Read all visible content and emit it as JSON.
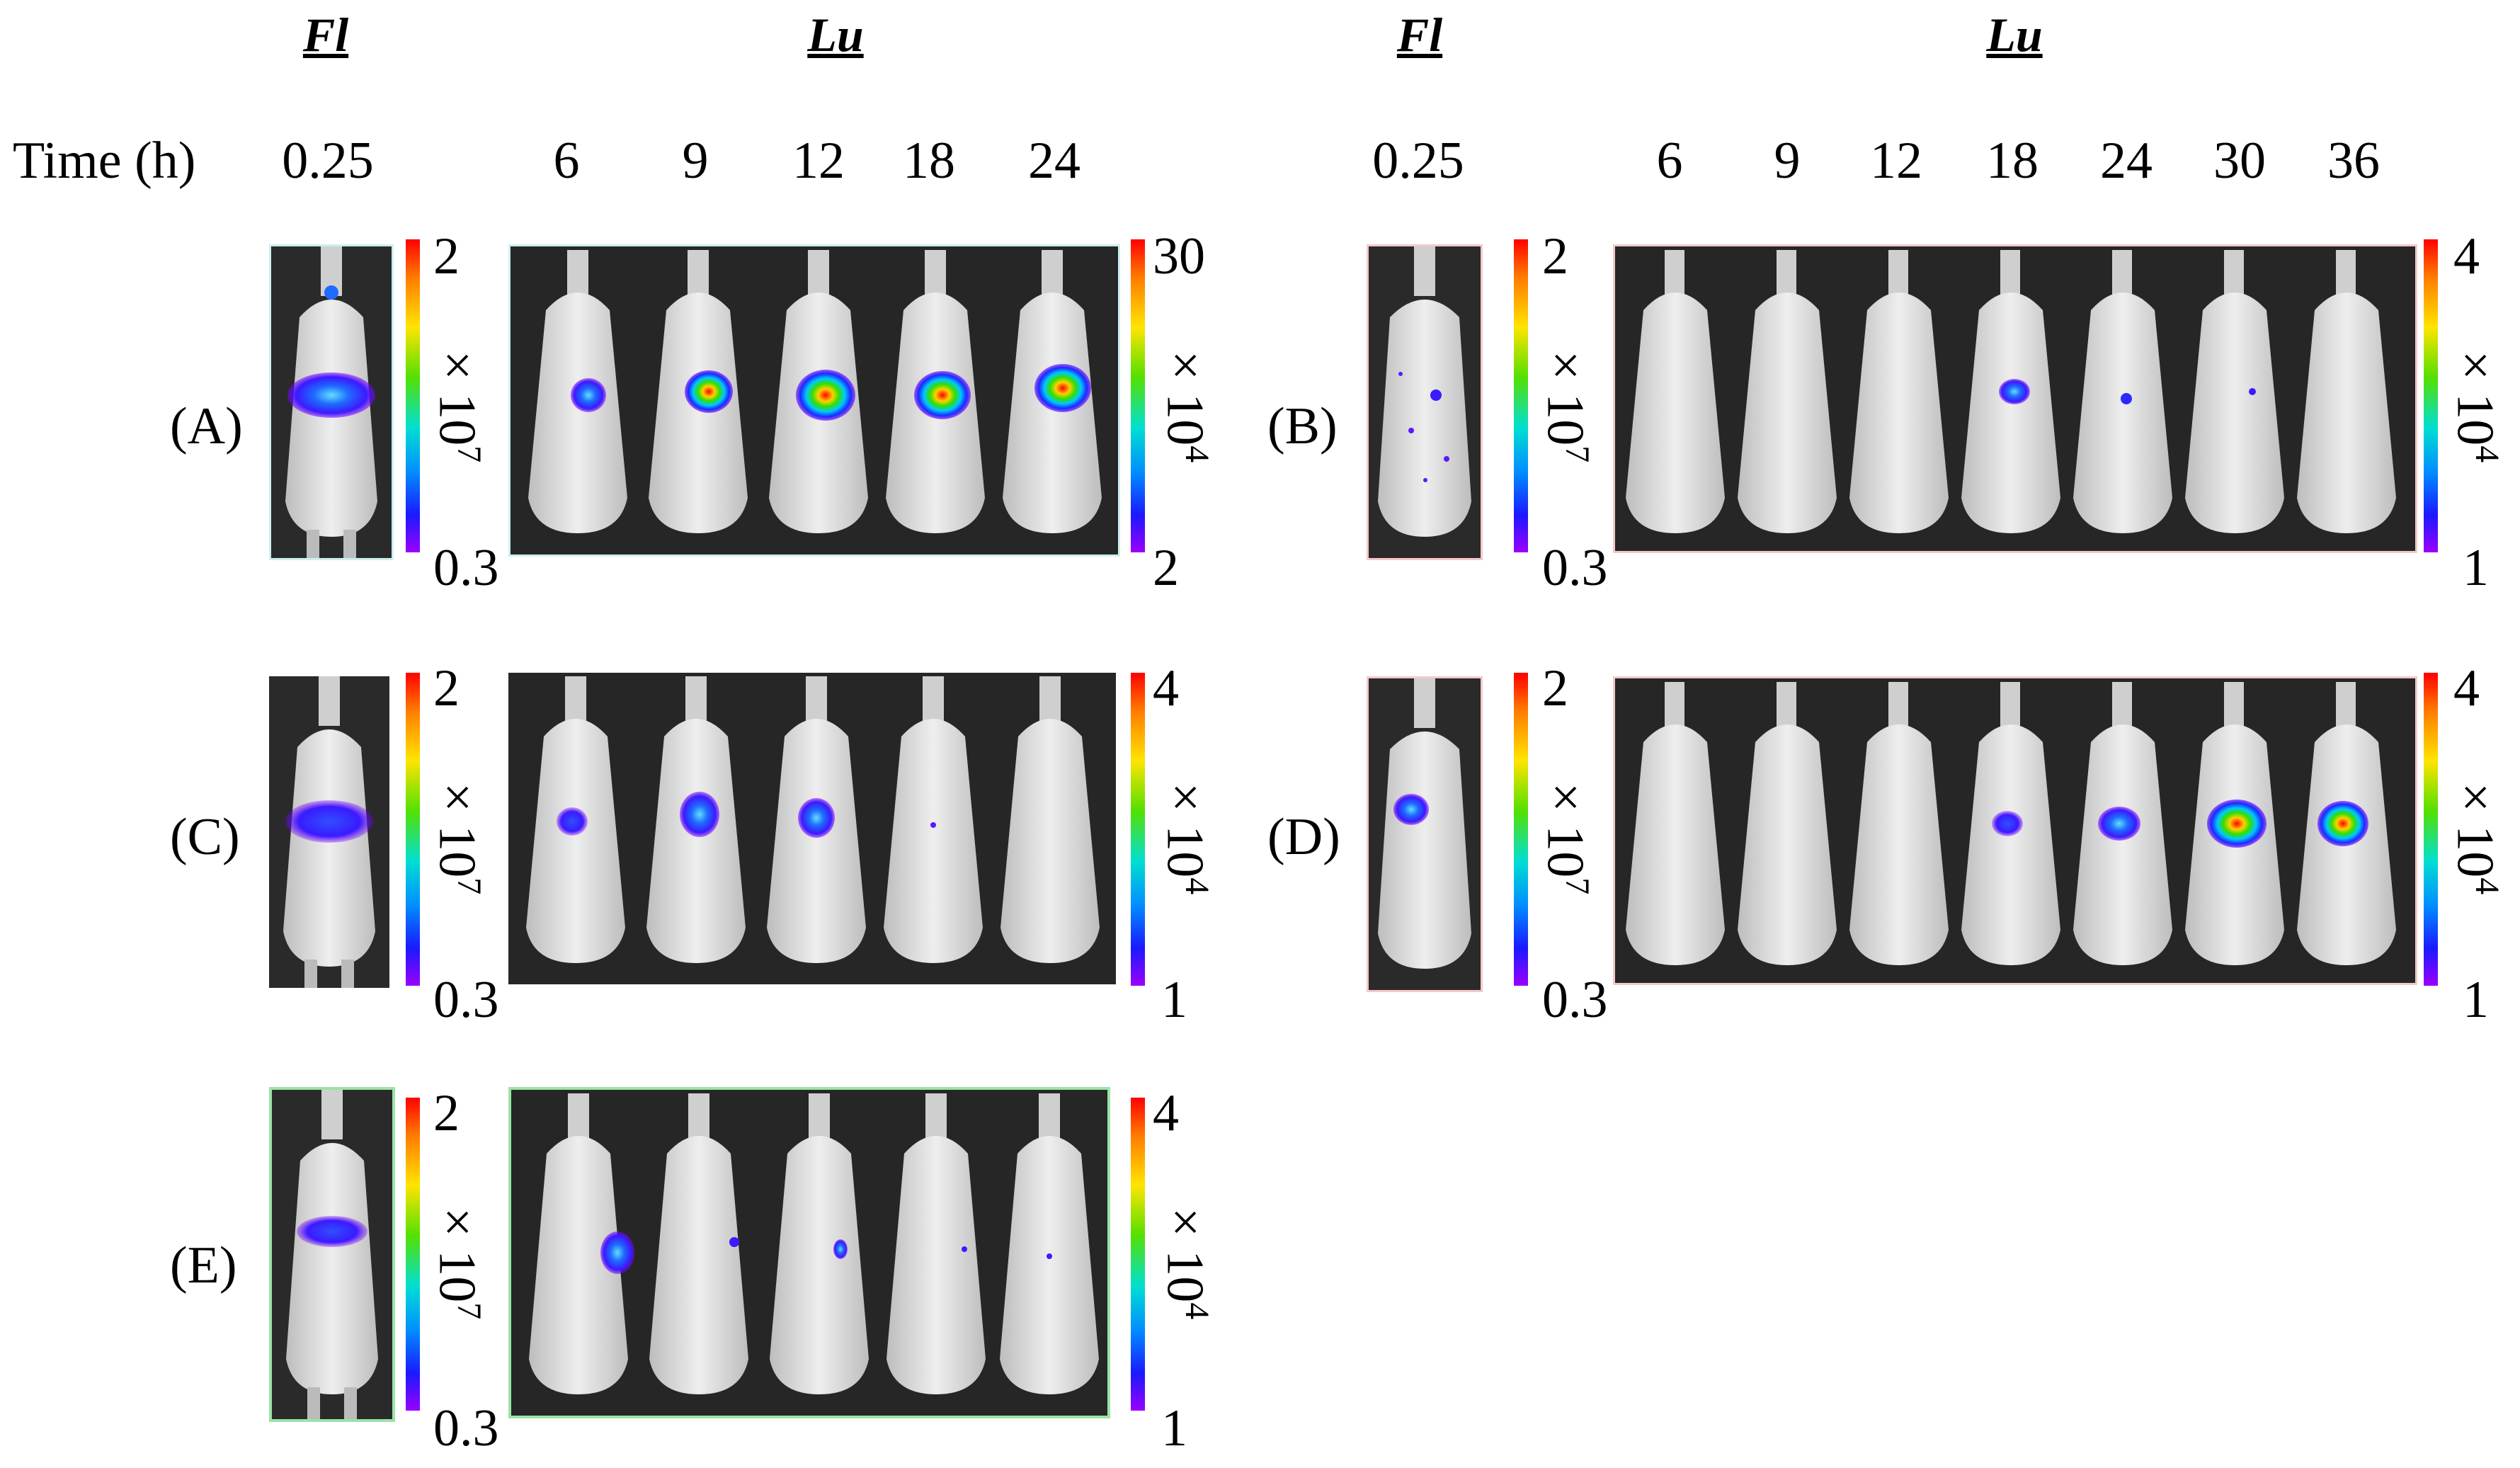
{
  "headers": {
    "fl_left": "Fl",
    "lu_left": "Lu",
    "fl_right": "Fl",
    "lu_right": "Lu"
  },
  "time_label": "Time (h)",
  "left_times": [
    "0.25",
    "6",
    "9",
    "12",
    "18",
    "24"
  ],
  "right_times": [
    "0.25",
    "6",
    "9",
    "12",
    "18",
    "24",
    "30",
    "36"
  ],
  "rows": [
    {
      "label": "(A)",
      "fl_scale": {
        "max": "2",
        "min": "0.3",
        "base": "× 10",
        "exp": "7"
      },
      "lu_scale": {
        "max": "30",
        "min": "2",
        "base": "× 10",
        "exp": "4"
      },
      "border_color": "#cdeeee"
    },
    {
      "label": "(B)",
      "fl_scale": {
        "max": "2",
        "min": "0.3",
        "base": "× 10",
        "exp": "7"
      },
      "lu_scale": {
        "max": "4",
        "min": "1",
        "base": "× 10",
        "exp": "4"
      },
      "border_color": "#f5c8c8"
    },
    {
      "label": "(C)",
      "fl_scale": {
        "max": "2",
        "min": "0.3",
        "base": "× 10",
        "exp": "7"
      },
      "lu_scale": {
        "max": "4",
        "min": "1",
        "base": "× 10",
        "exp": "4"
      },
      "border_color": "#ffffff"
    },
    {
      "label": "(D)",
      "fl_scale": {
        "max": "2",
        "min": "0.3",
        "base": "× 10",
        "exp": "7"
      },
      "lu_scale": {
        "max": "4",
        "min": "1",
        "base": "× 10",
        "exp": "4"
      },
      "border_color": "#f5c8c8"
    },
    {
      "label": "(E)",
      "fl_scale": {
        "max": "2",
        "min": "0.3",
        "base": "× 10",
        "exp": "7"
      },
      "lu_scale": {
        "max": "4",
        "min": "1",
        "base": "× 10",
        "exp": "4"
      },
      "border_color": "#9be3a6"
    }
  ],
  "colors": {
    "colorbar_top": "#ff0000",
    "colorbar_bottom": "#9b00ff",
    "panel_background": "#262626",
    "mouse_body": "#d9d9d9"
  }
}
